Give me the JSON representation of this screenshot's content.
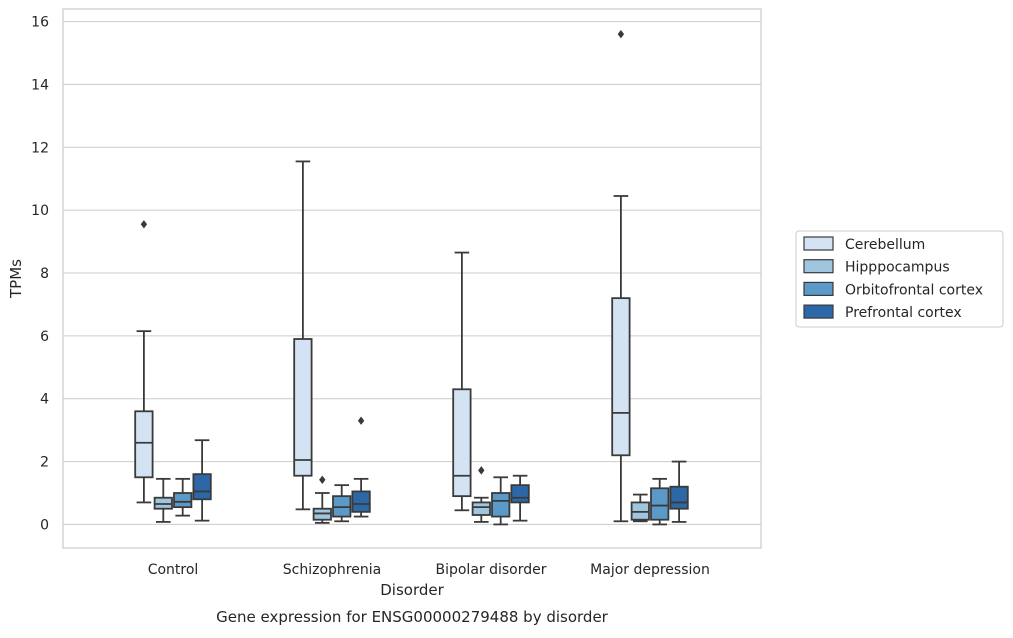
{
  "chart_data": {
    "type": "boxplot",
    "title": "Gene expression for ENSG00000279488 by disorder",
    "xlabel": "Disorder",
    "ylabel": "TPMs",
    "ylim": [
      -0.75,
      16.4
    ],
    "yticks": [
      0,
      2,
      4,
      6,
      8,
      10,
      12,
      14,
      16
    ],
    "grid": "horizontal",
    "legend_position": "right",
    "categories": [
      "Control",
      "Schizophrenia",
      "Bipolar disorder",
      "Major depression"
    ],
    "series": [
      {
        "name": "Cerebellum",
        "color": "#d4e3f3",
        "boxes": [
          {
            "whisker_low": 0.7,
            "q1": 1.5,
            "median": 2.6,
            "q3": 3.6,
            "whisker_high": 6.15,
            "outliers": [
              9.55
            ]
          },
          {
            "whisker_low": 0.48,
            "q1": 1.55,
            "median": 2.05,
            "q3": 5.9,
            "whisker_high": 11.55,
            "outliers": []
          },
          {
            "whisker_low": 0.45,
            "q1": 0.9,
            "median": 1.55,
            "q3": 4.3,
            "whisker_high": 8.65,
            "outliers": []
          },
          {
            "whisker_low": 0.1,
            "q1": 2.2,
            "median": 3.55,
            "q3": 7.2,
            "whisker_high": 10.45,
            "outliers": [
              15.6
            ]
          }
        ]
      },
      {
        "name": "Hipppocampus",
        "color": "#9fc5df",
        "boxes": [
          {
            "whisker_low": 0.08,
            "q1": 0.5,
            "median": 0.65,
            "q3": 0.85,
            "whisker_high": 1.45,
            "outliers": []
          },
          {
            "whisker_low": 0.05,
            "q1": 0.15,
            "median": 0.35,
            "q3": 0.5,
            "whisker_high": 1.0,
            "outliers": [
              1.42
            ]
          },
          {
            "whisker_low": 0.08,
            "q1": 0.3,
            "median": 0.55,
            "q3": 0.7,
            "whisker_high": 0.85,
            "outliers": [
              1.72
            ]
          },
          {
            "whisker_low": 0.1,
            "q1": 0.15,
            "median": 0.4,
            "q3": 0.7,
            "whisker_high": 0.95,
            "outliers": []
          }
        ]
      },
      {
        "name": "Orbitofrontal cortex",
        "color": "#5b9ac8",
        "boxes": [
          {
            "whisker_low": 0.28,
            "q1": 0.55,
            "median": 0.72,
            "q3": 1.0,
            "whisker_high": 1.45,
            "outliers": []
          },
          {
            "whisker_low": 0.1,
            "q1": 0.25,
            "median": 0.55,
            "q3": 0.9,
            "whisker_high": 1.25,
            "outliers": []
          },
          {
            "whisker_low": 0.0,
            "q1": 0.25,
            "median": 0.75,
            "q3": 1.0,
            "whisker_high": 1.5,
            "outliers": []
          },
          {
            "whisker_low": 0.0,
            "q1": 0.15,
            "median": 0.6,
            "q3": 1.15,
            "whisker_high": 1.45,
            "outliers": []
          }
        ]
      },
      {
        "name": "Prefrontal cortex",
        "color": "#2c68a8",
        "boxes": [
          {
            "whisker_low": 0.12,
            "q1": 0.8,
            "median": 1.05,
            "q3": 1.6,
            "whisker_high": 2.68,
            "outliers": []
          },
          {
            "whisker_low": 0.25,
            "q1": 0.4,
            "median": 0.65,
            "q3": 1.05,
            "whisker_high": 1.45,
            "outliers": [
              3.3
            ]
          },
          {
            "whisker_low": 0.12,
            "q1": 0.7,
            "median": 0.85,
            "q3": 1.25,
            "whisker_high": 1.55,
            "outliers": []
          },
          {
            "whisker_low": 0.08,
            "q1": 0.5,
            "median": 0.7,
            "q3": 1.2,
            "whisker_high": 2.0,
            "outliers": []
          }
        ]
      }
    ]
  }
}
